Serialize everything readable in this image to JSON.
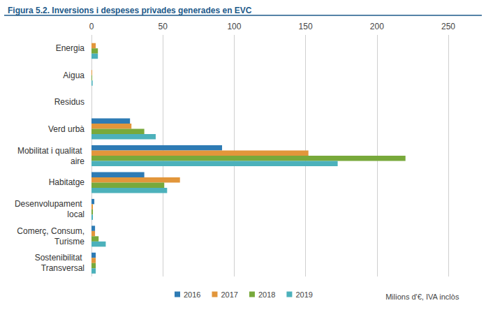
{
  "chart_data": {
    "type": "bar",
    "orientation": "horizontal",
    "title": "Figura 5.2. Inversions i despeses privades generades en EVC",
    "xlabel": "Milions d'€, IVA inclòs",
    "categories": [
      "Energia",
      "Aigua",
      "Residus",
      "Verd urbà",
      "Mobilitat i qualitat aire",
      "Habitatge",
      "Desenvolupament local",
      "Comerç, Consum, Turisme",
      "Sostenibilitat Transversal"
    ],
    "series": [
      {
        "name": "2016",
        "color": "#2e7bb4",
        "values": [
          0,
          0,
          0,
          27,
          91.5,
          37,
          2,
          2.5,
          3
        ]
      },
      {
        "name": "2017",
        "color": "#e2963b",
        "values": [
          3,
          0.5,
          0,
          28,
          152,
          62,
          1,
          2.5,
          3
        ]
      },
      {
        "name": "2018",
        "color": "#78a93b",
        "values": [
          4.5,
          0.5,
          0,
          37,
          220,
          51,
          1,
          5,
          3
        ]
      },
      {
        "name": "2019",
        "color": "#4cb1bb",
        "values": [
          4.5,
          0.8,
          0,
          45,
          172.5,
          53,
          1,
          10,
          3
        ]
      }
    ],
    "xlim": [
      0,
      250
    ],
    "xticks": [
      0,
      50,
      100,
      150,
      200,
      250
    ],
    "grid": true,
    "legend": "bottom"
  }
}
